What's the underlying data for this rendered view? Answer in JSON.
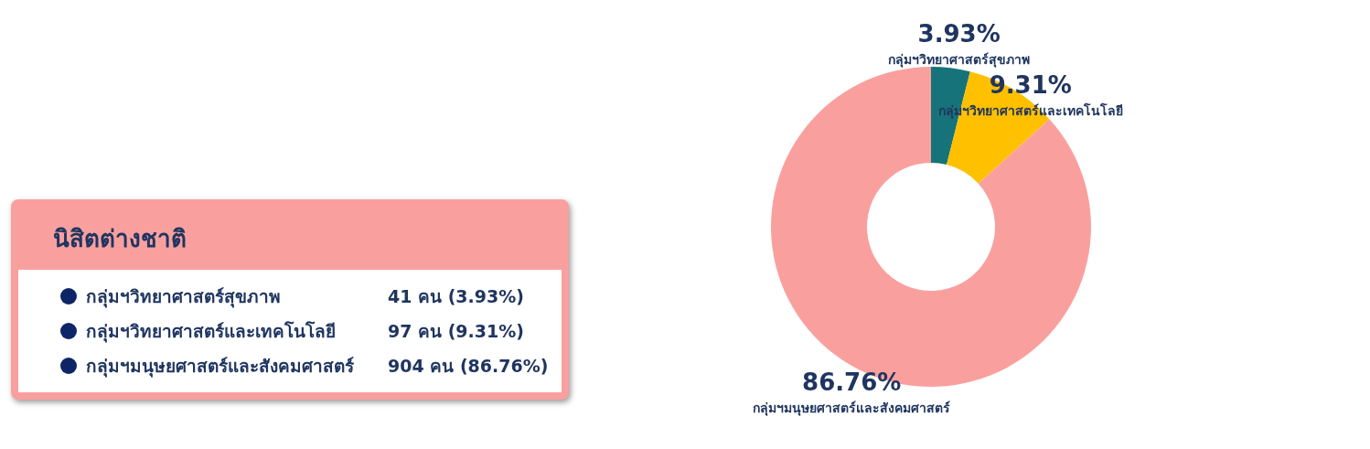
{
  "chart_data": {
    "type": "donut",
    "title": "นิสิตต่างชาติ",
    "categories": [
      "กลุ่มฯวิทยาศาสตร์สุขภาพ",
      "กลุ่มฯวิทยาศาสตร์และเทคโนโลยี",
      "กลุ่มฯมนุษยศาสตร์และสังคมศาสตร์"
    ],
    "values": [
      3.93,
      9.31,
      86.76
    ],
    "colors": [
      "#17737a",
      "#ffc000",
      "#f9a09e"
    ],
    "value_labels": [
      "3.93%",
      "9.31%",
      "86.76%"
    ],
    "annotations": [
      "41 คน (3.93%)",
      "97 คน (9.31%)",
      "904 คน (86.76%)"
    ]
  }
}
